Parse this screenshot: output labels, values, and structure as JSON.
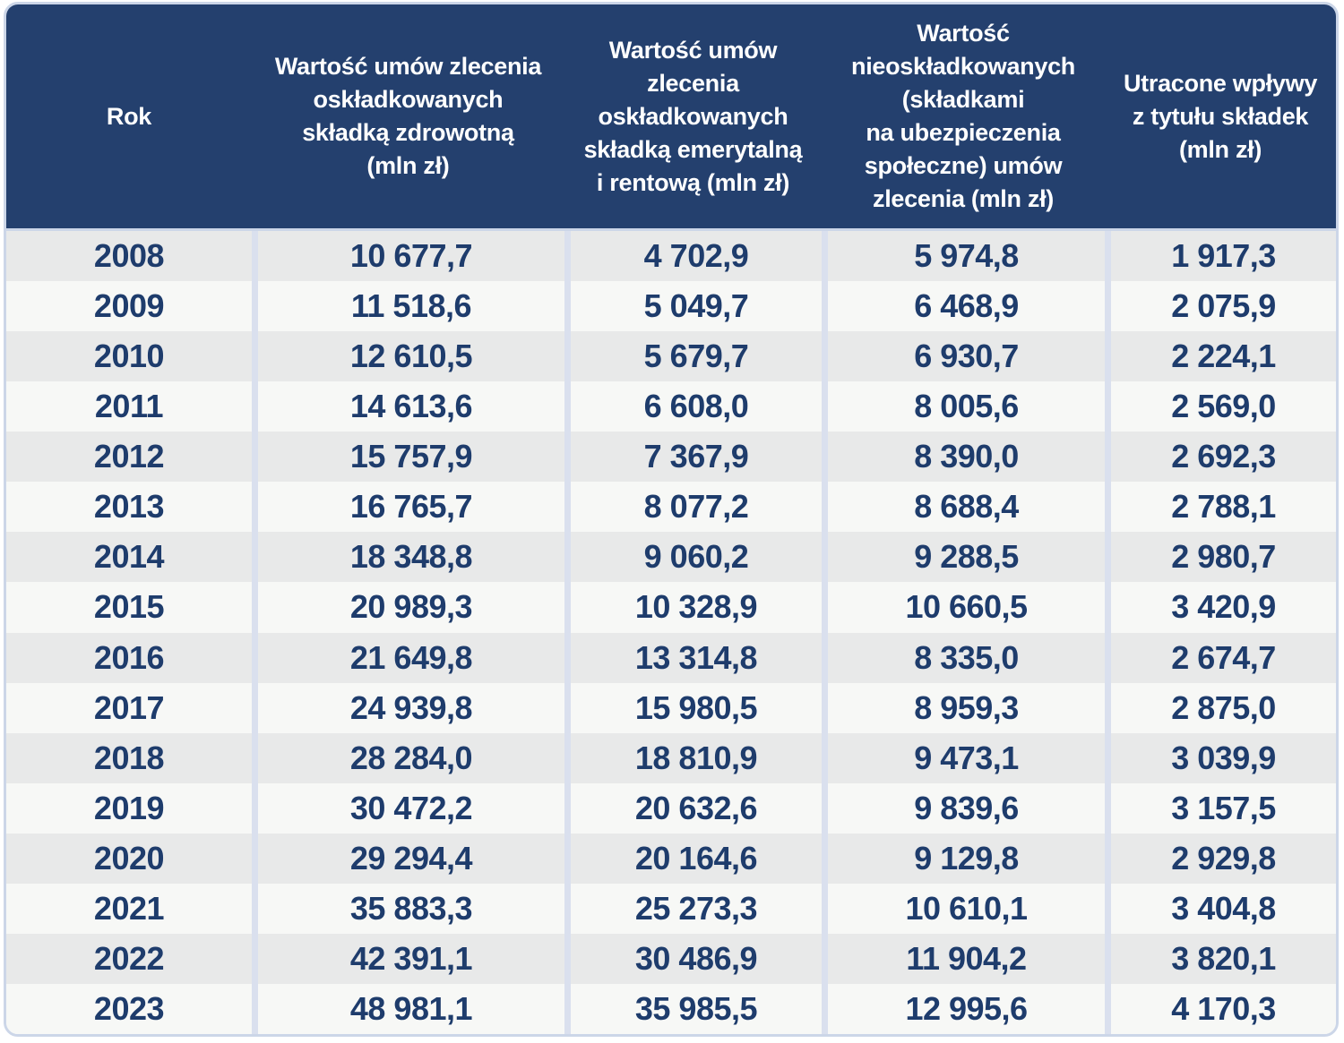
{
  "chart_data": {
    "type": "table",
    "columns": [
      "Rok",
      "Wartość umów zlecenia\noskładkowanych\nskładką zdrowotną\n(mln zł)",
      "Wartość umów\nzlecenia oskładkowanych\nskładką emerytalną\ni rentową (mln zł)",
      "Wartość\nnieoskładkowanych\n(składkami\nna ubezpieczenia\nspołeczne) umów\nzlecenia (mln zł)",
      "Utracone wpływy\nz tytułu składek\n(mln zł)"
    ],
    "rows": [
      [
        "2008",
        "10 677,7",
        "4 702,9",
        "5 974,8",
        "1 917,3"
      ],
      [
        "2009",
        "11 518,6",
        "5 049,7",
        "6 468,9",
        "2 075,9"
      ],
      [
        "2010",
        "12 610,5",
        "5 679,7",
        "6 930,7",
        "2 224,1"
      ],
      [
        "2011",
        "14 613,6",
        "6 608,0",
        "8 005,6",
        "2 569,0"
      ],
      [
        "2012",
        "15 757,9",
        "7 367,9",
        "8 390,0",
        "2 692,3"
      ],
      [
        "2013",
        "16 765,7",
        "8 077,2",
        "8 688,4",
        "2 788,1"
      ],
      [
        "2014",
        "18 348,8",
        "9 060,2",
        "9 288,5",
        "2 980,7"
      ],
      [
        "2015",
        "20 989,3",
        "10 328,9",
        "10 660,5",
        "3 420,9"
      ],
      [
        "2016",
        "21 649,8",
        "13 314,8",
        "8 335,0",
        "2 674,7"
      ],
      [
        "2017",
        "24 939,8",
        "15 980,5",
        "8 959,3",
        "2 875,0"
      ],
      [
        "2018",
        "28 284,0",
        "18 810,9",
        "9 473,1",
        "3 039,9"
      ],
      [
        "2019",
        "30 472,2",
        "20 632,6",
        "9 839,6",
        "3 157,5"
      ],
      [
        "2020",
        "29 294,4",
        "20 164,6",
        "9 129,8",
        "2 929,8"
      ],
      [
        "2021",
        "35 883,3",
        "25 273,3",
        "10 610,1",
        "3 404,8"
      ],
      [
        "2022",
        "42 391,1",
        "30 486,9",
        "11 904,2",
        "3 820,1"
      ],
      [
        "2023",
        "48 981,1",
        "35 985,5",
        "12 995,6",
        "4 170,3"
      ]
    ],
    "layout": {
      "legend": "none",
      "grid": "column dividers only, alternating row shading"
    }
  },
  "colors": {
    "header_bg": "#24406e",
    "header_text": "#ffffff",
    "row_even_bg": "#e8e9e9",
    "row_odd_bg": "#f7f8f6",
    "cell_text": "#1e3c6c",
    "divider": "#dae0ee",
    "outer_border": "#ccd6e8"
  }
}
